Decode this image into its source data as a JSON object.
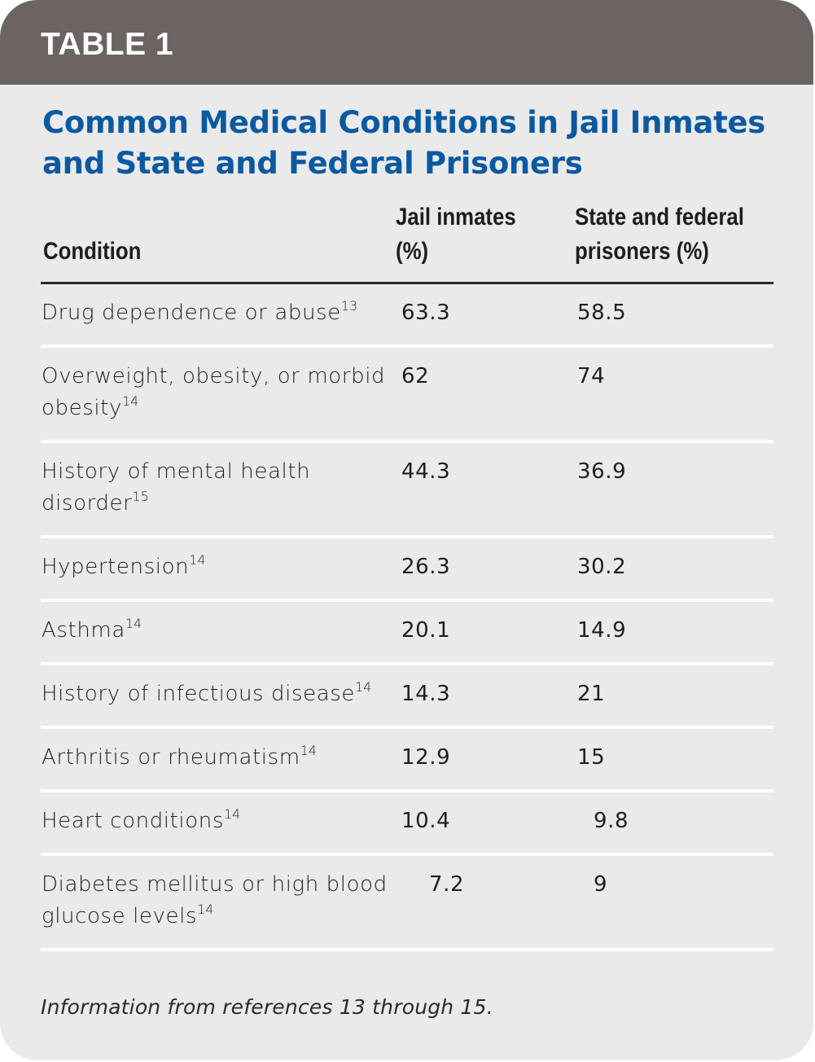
{
  "header": {
    "label": "TABLE 1"
  },
  "title": "Common Medical Conditions in Jail Inmates and State and Federal Prisoners",
  "colors": {
    "header_bg": "#6b6462",
    "title": "#0b5aa1",
    "panel_bg": "#ebeaea"
  },
  "table": {
    "columns": [
      "Condition",
      "Jail inmates (%)",
      "State and federal prisoners (%)"
    ],
    "rows": [
      {
        "condition": "Drug dependence or abuse",
        "ref": "13",
        "jail": "63.3",
        "prison": "58.5"
      },
      {
        "condition": "Overweight, obesity, or morbid obesity",
        "ref": "14",
        "jail": "62",
        "prison": "74"
      },
      {
        "condition": "History of mental health disorder",
        "ref": "15",
        "jail": "44.3",
        "prison": "36.9"
      },
      {
        "condition": "Hypertension",
        "ref": "14",
        "jail": "26.3",
        "prison": "30.2"
      },
      {
        "condition": "Asthma",
        "ref": "14",
        "jail": "20.1",
        "prison": "14.9"
      },
      {
        "condition": "History of infectious disease",
        "ref": "14",
        "jail": "14.3",
        "prison": "21"
      },
      {
        "condition": "Arthritis or rheumatism",
        "ref": "14",
        "jail": "12.9",
        "prison": "15"
      },
      {
        "condition": "Heart conditions",
        "ref": "14",
        "jail": "10.4",
        "prison": "9.8"
      },
      {
        "condition": "Diabetes mellitus or high blood glucose levels",
        "ref": "14",
        "jail": "7.2",
        "prison": "9"
      }
    ]
  },
  "footnote": "Information from references 13 through 15."
}
